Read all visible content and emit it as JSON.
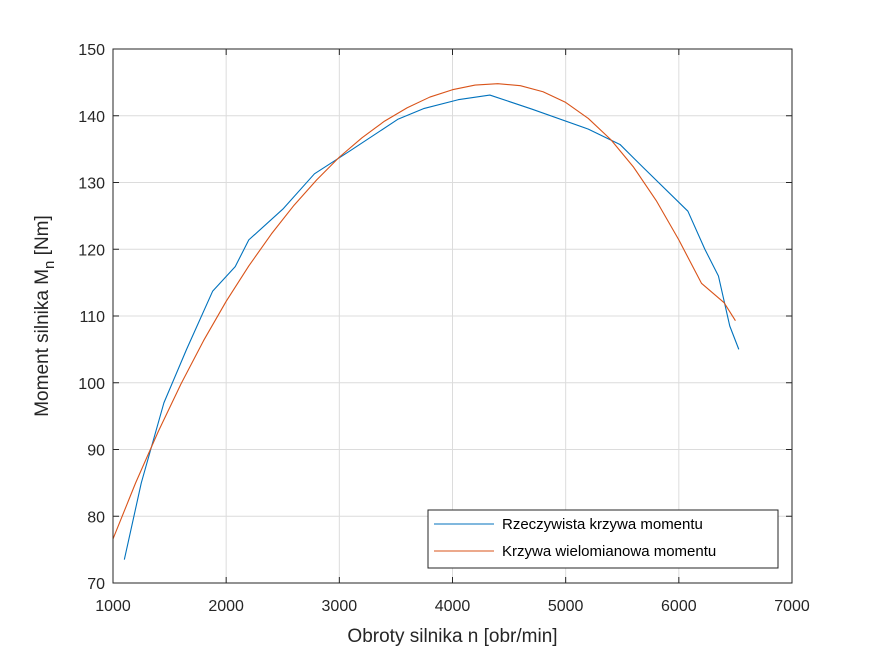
{
  "chart_data": {
    "type": "line",
    "title": "",
    "xlabel": "Obroty silnika n [obr/min]",
    "ylabel_main": "Moment silnika M",
    "ylabel_sub": "n",
    "ylabel_unit": " [Nm]",
    "xlim": [
      1000,
      7000
    ],
    "ylim": [
      70,
      150
    ],
    "xticks": [
      1000,
      2000,
      3000,
      4000,
      5000,
      6000,
      7000
    ],
    "yticks": [
      70,
      80,
      90,
      100,
      110,
      120,
      130,
      140,
      150
    ],
    "grid": true,
    "legend_position": "bottom-right",
    "series": [
      {
        "name": "Rzeczywista krzywa momentu",
        "color": "#0072BD",
        "x": [
          1100,
          1250,
          1450,
          1650,
          1880,
          2080,
          2200,
          2500,
          2780,
          3100,
          3520,
          3750,
          4050,
          4330,
          4700,
          5200,
          5480,
          5700,
          6080,
          6230,
          6350,
          6450,
          6530
        ],
        "y": [
          73.5,
          85,
          97,
          105,
          113.7,
          117.4,
          121.4,
          126,
          131.3,
          134.8,
          139.5,
          141.1,
          142.4,
          143.1,
          141,
          138,
          135.7,
          132,
          125.7,
          120,
          116,
          108.5,
          105
        ]
      },
      {
        "name": "Krzywa wielomianowa momentu",
        "color": "#D95319",
        "x": [
          1000,
          1200,
          1400,
          1600,
          1800,
          2000,
          2200,
          2400,
          2600,
          2800,
          3000,
          3200,
          3400,
          3600,
          3800,
          4000,
          4200,
          4400,
          4600,
          4800,
          5000,
          5200,
          5400,
          5600,
          5800,
          6000,
          6200,
          6400,
          6500
        ],
        "y": [
          76.6,
          85.0,
          92.7,
          99.8,
          106.3,
          112.2,
          117.5,
          122.3,
          126.6,
          130.4,
          133.8,
          136.7,
          139.2,
          141.2,
          142.8,
          143.9,
          144.6,
          144.8,
          144.5,
          143.6,
          142.0,
          139.6,
          136.4,
          132.3,
          127.3,
          121.4,
          114.9,
          112.0,
          109.3
        ]
      }
    ]
  }
}
